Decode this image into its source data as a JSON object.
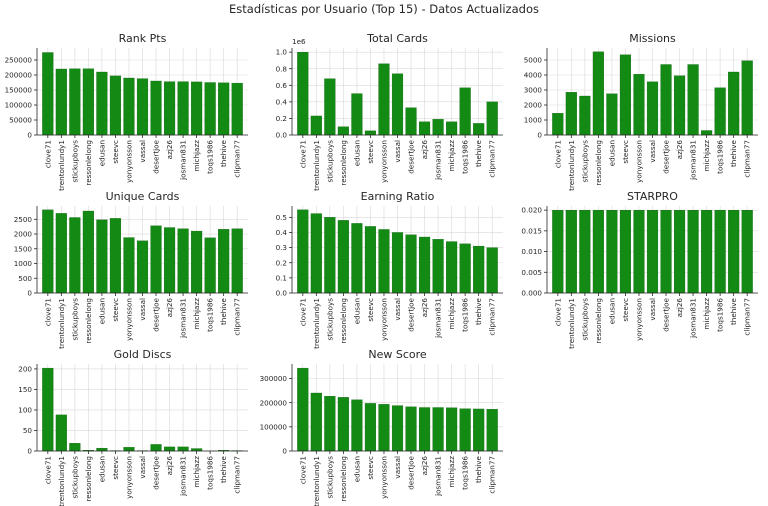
{
  "suptitle": "Estadísticas por Usuario (Top 15) - Datos Actualizados",
  "colors": {
    "bar": "#138a13",
    "bar_edge": "#0a5c0a"
  },
  "chart_data": [
    {
      "type": "bar",
      "title": "Rank Pts",
      "categories": [
        "clove71",
        "trentonlundy1",
        "stickupboys",
        "ressonlelong",
        "edusan",
        "steevc",
        "yonyonsson",
        "vassal",
        "desertjoe",
        "azj26",
        "josman831",
        "michjazz",
        "toqs1986",
        "thehive",
        "clipman77"
      ],
      "values": [
        275000,
        220000,
        221000,
        221000,
        210000,
        197000,
        190000,
        188000,
        180000,
        178000,
        178000,
        177000,
        175000,
        174000,
        173000
      ],
      "ylim": [
        0,
        290000
      ],
      "yticks": [
        0,
        50000,
        100000,
        150000,
        200000,
        250000
      ],
      "ytick_labels": [
        "0",
        "50000",
        "100000",
        "150000",
        "200000",
        "250000"
      ],
      "offset_text": "",
      "grid": true
    },
    {
      "type": "bar",
      "title": "Total Cards",
      "categories": [
        "clove71",
        "trentonlundy1",
        "stickupboys",
        "ressonlelong",
        "edusan",
        "steevc",
        "yonyonsson",
        "vassal",
        "desertjoe",
        "azj26",
        "josman831",
        "michjazz",
        "toqs1986",
        "thehive",
        "clipman77"
      ],
      "values": [
        1000000,
        230000,
        680000,
        100000,
        500000,
        50000,
        860000,
        740000,
        330000,
        160000,
        190000,
        160000,
        570000,
        140000,
        400000
      ],
      "ylim": [
        0,
        1050000
      ],
      "yticks": [
        0,
        200000,
        400000,
        600000,
        800000,
        1000000
      ],
      "ytick_labels": [
        "0.0",
        "0.2",
        "0.4",
        "0.6",
        "0.8",
        "1.0"
      ],
      "offset_text": "1e6",
      "grid": true
    },
    {
      "type": "bar",
      "title": "Missions",
      "categories": [
        "clove71",
        "trentonlundy1",
        "stickupboys",
        "ressonlelong",
        "edusan",
        "steevc",
        "yonyonsson",
        "vassal",
        "desertjoe",
        "azj26",
        "josman831",
        "michjazz",
        "toqs1986",
        "thehive",
        "clipman77"
      ],
      "values": [
        1450,
        2850,
        2600,
        5550,
        2750,
        5350,
        4050,
        3550,
        4700,
        3950,
        4700,
        300,
        3150,
        4200,
        4950
      ],
      "ylim": [
        0,
        5800
      ],
      "yticks": [
        0,
        1000,
        2000,
        3000,
        4000,
        5000
      ],
      "ytick_labels": [
        "0",
        "1000",
        "2000",
        "3000",
        "4000",
        "5000"
      ],
      "offset_text": "",
      "grid": true
    },
    {
      "type": "bar",
      "title": "Unique Cards",
      "categories": [
        "clove71",
        "trentonlundy1",
        "stickupboys",
        "ressonlelong",
        "edusan",
        "steevc",
        "yonyonsson",
        "vassal",
        "desertjoe",
        "azj26",
        "josman831",
        "michjazz",
        "toqs1986",
        "thehive",
        "clipman77"
      ],
      "values": [
        2820,
        2700,
        2560,
        2780,
        2480,
        2530,
        1880,
        1770,
        2280,
        2220,
        2180,
        2100,
        1870,
        2160,
        2180
      ],
      "ylim": [
        0,
        2950
      ],
      "yticks": [
        0,
        500,
        1000,
        1500,
        2000,
        2500
      ],
      "ytick_labels": [
        "0",
        "500",
        "1000",
        "1500",
        "2000",
        "2500"
      ],
      "offset_text": "",
      "grid": true
    },
    {
      "type": "bar",
      "title": "Earning Ratio",
      "categories": [
        "clove71",
        "trentonlundy1",
        "stickupboys",
        "ressonlelong",
        "edusan",
        "steevc",
        "yonyonsson",
        "vassal",
        "desertjoe",
        "azj26",
        "josman831",
        "michjazz",
        "toqs1986",
        "thehive",
        "clipman77"
      ],
      "values": [
        0.55,
        0.525,
        0.5,
        0.48,
        0.46,
        0.44,
        0.42,
        0.4,
        0.385,
        0.37,
        0.355,
        0.34,
        0.325,
        0.31,
        0.3
      ],
      "ylim": [
        0,
        0.575
      ],
      "yticks": [
        0,
        0.1,
        0.2,
        0.3,
        0.4,
        0.5
      ],
      "ytick_labels": [
        "0.0",
        "0.1",
        "0.2",
        "0.3",
        "0.4",
        "0.5"
      ],
      "offset_text": "",
      "grid": true
    },
    {
      "type": "bar",
      "title": "STARPRO",
      "categories": [
        "clove71",
        "trentonlundy1",
        "stickupboys",
        "ressonlelong",
        "edusan",
        "steevc",
        "yonyonsson",
        "vassal",
        "desertjoe",
        "azj26",
        "josman831",
        "michjazz",
        "toqs1986",
        "thehive",
        "clipman77"
      ],
      "values": [
        0.02,
        0.02,
        0.02,
        0.02,
        0.02,
        0.02,
        0.02,
        0.02,
        0.02,
        0.02,
        0.02,
        0.02,
        0.02,
        0.02,
        0.02
      ],
      "ylim": [
        0,
        0.021
      ],
      "yticks": [
        0,
        0.005,
        0.01,
        0.015,
        0.02
      ],
      "ytick_labels": [
        "0.000",
        "0.005",
        "0.010",
        "0.015",
        "0.020"
      ],
      "offset_text": "",
      "grid": true
    },
    {
      "type": "bar",
      "title": "Gold Discs",
      "categories": [
        "clove71",
        "trentonlundy1",
        "stickupboys",
        "ressonlelong",
        "edusan",
        "steevc",
        "yonyonsson",
        "vassal",
        "desertjoe",
        "azj26",
        "josman831",
        "michjazz",
        "toqs1986",
        "thehive",
        "clipman77"
      ],
      "values": [
        202,
        88,
        19,
        2,
        7,
        1,
        9,
        1,
        16,
        10,
        10,
        6,
        0,
        2,
        1
      ],
      "ylim": [
        0,
        212
      ],
      "yticks": [
        0,
        50,
        100,
        150,
        200
      ],
      "ytick_labels": [
        "0",
        "50",
        "100",
        "150",
        "200"
      ],
      "offset_text": "",
      "grid": true
    },
    {
      "type": "bar",
      "title": "New Score",
      "categories": [
        "clove71",
        "trentonlundy1",
        "stickupboys",
        "ressonlelong",
        "edusan",
        "steevc",
        "yonyonsson",
        "vassal",
        "desertjoe",
        "azj26",
        "josman831",
        "michjazz",
        "toqs1986",
        "thehive",
        "clipman77"
      ],
      "values": [
        343000,
        240000,
        227000,
        222000,
        212000,
        197000,
        193000,
        188000,
        183000,
        180000,
        180000,
        179000,
        175000,
        174000,
        173000
      ],
      "ylim": [
        0,
        360000
      ],
      "yticks": [
        0,
        100000,
        200000,
        300000
      ],
      "ytick_labels": [
        "0",
        "100000",
        "200000",
        "300000"
      ],
      "offset_text": "",
      "grid": true
    }
  ]
}
